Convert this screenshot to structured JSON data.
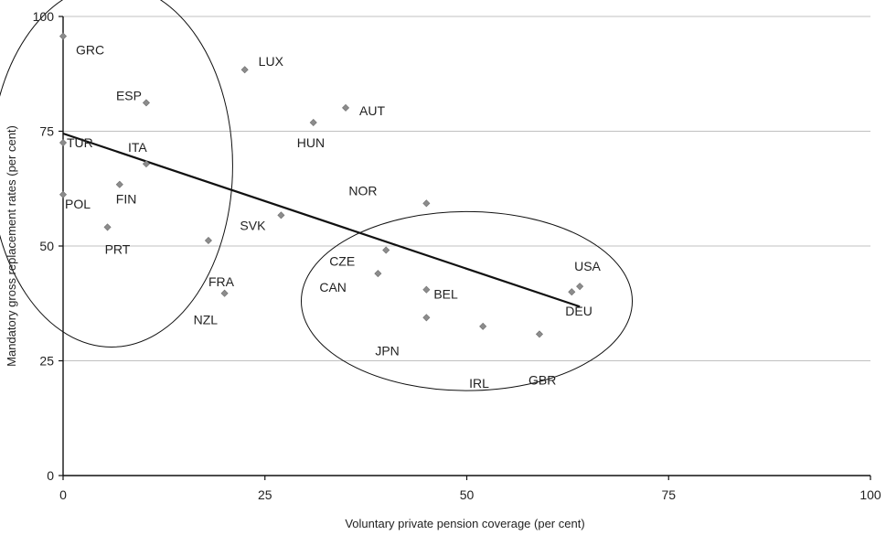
{
  "chart_data": {
    "type": "scatter",
    "xlabel": "Voluntary private pension coverage (per cent)",
    "ylabel": "Mandatory gross replacement rates (per cent)",
    "xlim": [
      0,
      100
    ],
    "ylim": [
      0,
      100
    ],
    "xticks": [
      0,
      25,
      50,
      75,
      100
    ],
    "yticks": [
      0,
      25,
      50,
      75,
      100
    ],
    "xtick_labels": [
      "0",
      "25",
      "50",
      "75",
      "100"
    ],
    "ytick_labels": [
      "0",
      "25",
      "50",
      "75",
      "100"
    ],
    "grid": "horizontal",
    "legend": "none",
    "marker_color": "#8c8c8c",
    "grid_color": "#c0c0c0",
    "line_color": "#111111",
    "points": [
      {
        "label": "GRC",
        "x": 0,
        "y": 95.7
      },
      {
        "label": "TUR",
        "x": 0,
        "y": 72.5
      },
      {
        "label": "POL",
        "x": 0,
        "y": 61.2
      },
      {
        "label": "ESP",
        "x": 10.3,
        "y": 81.2
      },
      {
        "label": "ITA",
        "x": 10.3,
        "y": 67.9
      },
      {
        "label": "FIN",
        "x": 7,
        "y": 63.4
      },
      {
        "label": "PRT",
        "x": 5.5,
        "y": 54.1
      },
      {
        "label": "LUX",
        "x": 22.5,
        "y": 88.4
      },
      {
        "label": "AUT",
        "x": 35,
        "y": 80.1
      },
      {
        "label": "HUN",
        "x": 31,
        "y": 76.9
      },
      {
        "label": "SVK",
        "x": 27,
        "y": 56.7
      },
      {
        "label": "FRA",
        "x": 18,
        "y": 51.2
      },
      {
        "label": "NZL",
        "x": 20,
        "y": 39.7
      },
      {
        "label": "NOR",
        "x": 45,
        "y": 59.3
      },
      {
        "label": "CZE",
        "x": 40,
        "y": 49.1
      },
      {
        "label": "CAN",
        "x": 39,
        "y": 44
      },
      {
        "label": "BEL",
        "x": 45,
        "y": 40.5
      },
      {
        "label": "JPN",
        "x": 45,
        "y": 34.4
      },
      {
        "label": "IRL",
        "x": 52,
        "y": 32.5
      },
      {
        "label": "GBR",
        "x": 59,
        "y": 30.8
      },
      {
        "label": "USA",
        "x": 64,
        "y": 41.2
      },
      {
        "label": "DEU",
        "x": 63,
        "y": 40
      }
    ],
    "trendline": {
      "x": [
        0,
        64
      ],
      "y": [
        74.5,
        36.8
      ]
    },
    "ellipses": [
      {
        "cx": 6,
        "cy": 67.5,
        "rx": 15,
        "ry": 39.5
      },
      {
        "cx": 50,
        "cy": 38,
        "rx": 20.5,
        "ry": 19.5
      }
    ]
  }
}
